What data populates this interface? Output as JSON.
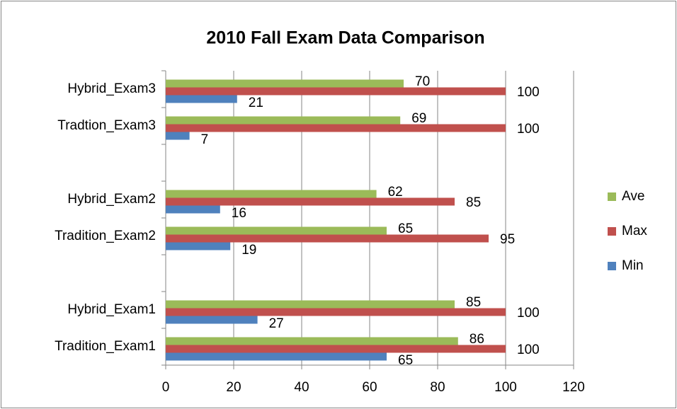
{
  "chart_data": {
    "type": "hbar",
    "title": "2010 Fall Exam Data Comparison",
    "categories": [
      "Tradition_Exam1",
      "Hybrid_Exam1",
      null,
      "Tradition_Exam2",
      "Hybrid_Exam2",
      null,
      "Tradtion_Exam3",
      "Hybrid_Exam3"
    ],
    "series": [
      {
        "name": "Min",
        "color": "#4f81bd",
        "values": [
          65,
          27,
          null,
          19,
          16,
          null,
          7,
          21
        ]
      },
      {
        "name": "Max",
        "color": "#c0504d",
        "values": [
          100,
          100,
          null,
          95,
          85,
          null,
          100,
          100
        ]
      },
      {
        "name": "Ave",
        "color": "#9bbb59",
        "values": [
          86,
          85,
          null,
          65,
          62,
          null,
          69,
          70
        ]
      }
    ],
    "xlim": [
      0,
      120
    ],
    "xticks": [
      0,
      20,
      40,
      60,
      80,
      100,
      120
    ],
    "grid": true,
    "legend": "right"
  }
}
